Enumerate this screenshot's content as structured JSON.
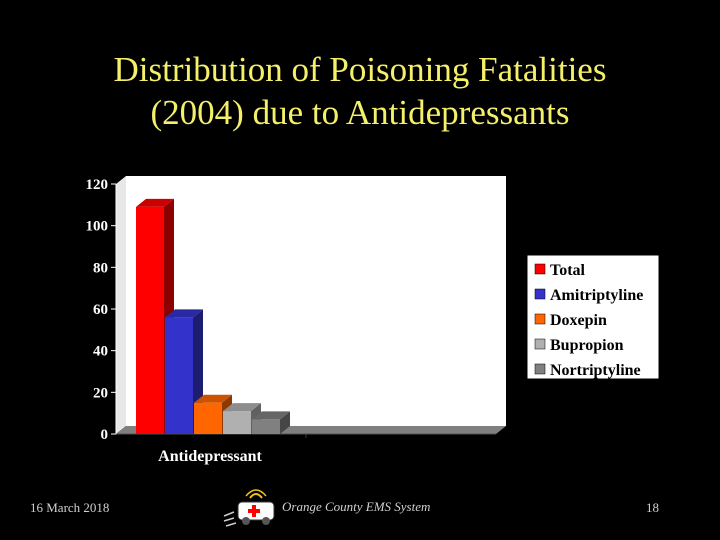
{
  "slide": {
    "title_line1": "Distribution of Poisoning Fatalities",
    "title_line2": "(2004) due to Antidepressants"
  },
  "chart_data": {
    "type": "bar",
    "categories": [
      "Antidepressant"
    ],
    "series": [
      {
        "name": "Total",
        "values": [
          109
        ],
        "color": "#ff0000"
      },
      {
        "name": "Amitriptyline",
        "values": [
          56
        ],
        "color": "#3333cc"
      },
      {
        "name": "Doxepin",
        "values": [
          15
        ],
        "color": "#ff6600"
      },
      {
        "name": "Bupropion",
        "values": [
          11
        ],
        "color": "#b0b0b0"
      },
      {
        "name": "Nortriptyline",
        "values": [
          7
        ],
        "color": "#808080"
      }
    ],
    "xlabel": "Antidepressant",
    "ylabel": "",
    "ylim": [
      0,
      120
    ],
    "yticks": [
      0,
      20,
      40,
      60,
      80,
      100,
      120
    ],
    "three_d": true,
    "grid": false,
    "legend_position": "right"
  },
  "footer": {
    "date": "16 March 2018",
    "organization": "Orange County EMS System",
    "page": "18"
  },
  "icons": {
    "footer_logo": "ambulance-icon"
  }
}
